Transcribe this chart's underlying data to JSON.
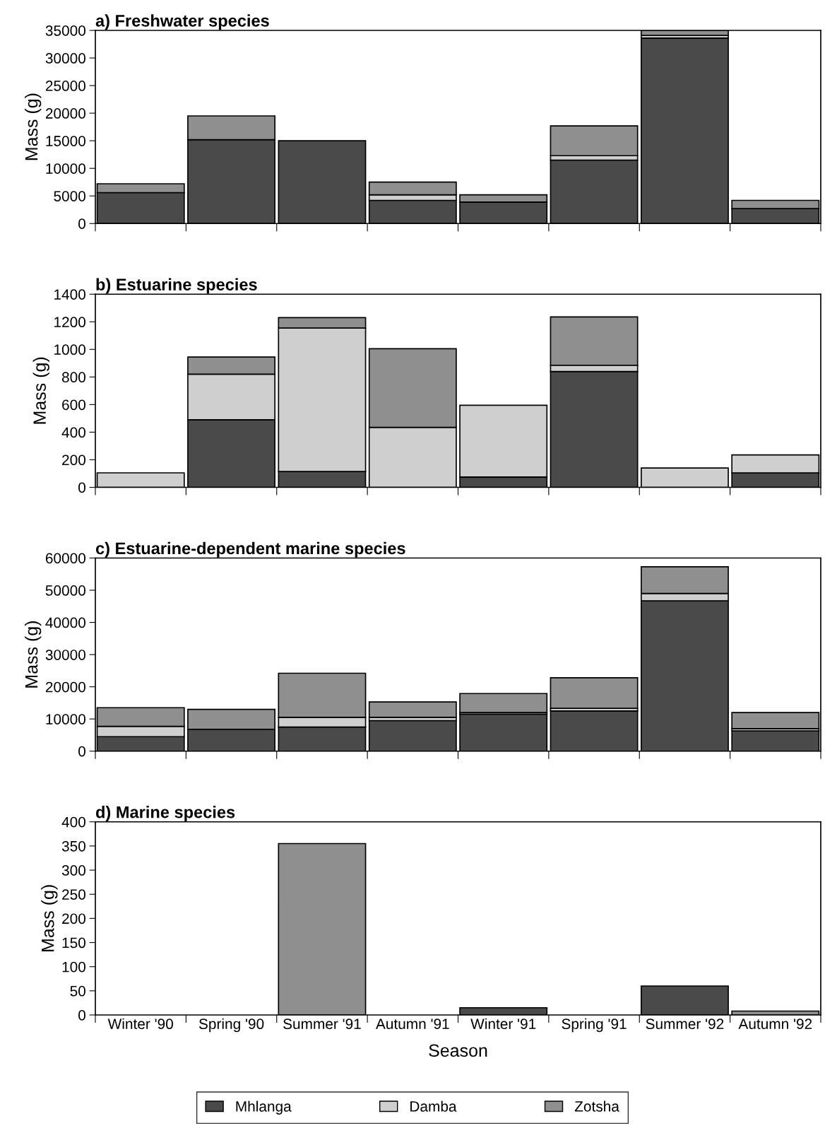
{
  "chart_data": [
    {
      "type": "bar",
      "stacked": true,
      "title": "a) Freshwater species",
      "ylabel": "Mass (g)",
      "categories": [
        null,
        null,
        null,
        null,
        null,
        null,
        null,
        null
      ],
      "ylim": [
        0,
        35000
      ],
      "yticks": [
        0,
        5000,
        10000,
        15000,
        20000,
        25000,
        30000,
        35000
      ],
      "tick_labels": "y",
      "series": [
        {
          "color": "#4a4a4a",
          "values": [
            5600,
            15200,
            15000,
            4200,
            3900,
            11500,
            33600,
            2700
          ]
        },
        {
          "color": "#cfcfcf",
          "values": [
            0,
            0,
            0,
            1000,
            0,
            800,
            500,
            0
          ]
        },
        {
          "color": "#8f8f8f",
          "values": [
            1600,
            4300,
            0,
            2300,
            1300,
            5400,
            900,
            1500
          ]
        }
      ]
    },
    {
      "type": "bar",
      "stacked": true,
      "title": "b) Estuarine species",
      "ylabel": "Mass (g)",
      "categories": [
        null,
        null,
        null,
        null,
        null,
        null,
        null,
        null
      ],
      "ylim": [
        0,
        1400
      ],
      "yticks": [
        0,
        200,
        400,
        600,
        800,
        1000,
        1200,
        1400
      ],
      "tick_labels": "y",
      "series": [
        {
          "color": "#4a4a4a",
          "values": [
            0,
            490,
            115,
            0,
            75,
            840,
            0,
            105
          ]
        },
        {
          "color": "#cfcfcf",
          "values": [
            105,
            330,
            1040,
            435,
            520,
            45,
            140,
            130
          ]
        },
        {
          "color": "#8f8f8f",
          "values": [
            0,
            125,
            75,
            570,
            0,
            350,
            0,
            0
          ]
        }
      ]
    },
    {
      "type": "bar",
      "stacked": true,
      "title": "c) Estuarine-dependent marine species",
      "ylabel": "Mass (g)",
      "categories": [
        null,
        null,
        null,
        null,
        null,
        null,
        null,
        null
      ],
      "ylim": [
        0,
        60000
      ],
      "yticks": [
        0,
        10000,
        20000,
        30000,
        40000,
        50000,
        60000
      ],
      "tick_labels": "y",
      "series": [
        {
          "color": "#4a4a4a",
          "values": [
            4500,
            6800,
            7500,
            9500,
            11500,
            12500,
            46700,
            6300
          ]
        },
        {
          "color": "#cfcfcf",
          "values": [
            3200,
            0,
            3000,
            1000,
            500,
            800,
            2300,
            700
          ]
        },
        {
          "color": "#8f8f8f",
          "values": [
            5800,
            6200,
            13700,
            4800,
            5900,
            9500,
            8300,
            5000
          ]
        }
      ]
    },
    {
      "type": "bar",
      "stacked": true,
      "title": "d) Marine species",
      "xlabel": "Season",
      "ylabel": "Mass (g)",
      "categories": [
        "Winter '90",
        "Spring '90",
        "Summer '91",
        "Autumn '91",
        "Winter '91",
        "Spring '91",
        "Summer '92",
        "Autumn '92"
      ],
      "ylim": [
        0,
        400
      ],
      "yticks": [
        0,
        50,
        100,
        150,
        200,
        250,
        300,
        350,
        400
      ],
      "legend": "bottom",
      "series": [
        {
          "name": "Mhlanga",
          "color": "#4a4a4a",
          "values": [
            0,
            0,
            0,
            0,
            15,
            0,
            60,
            0
          ]
        },
        {
          "name": "Damba",
          "color": "#cfcfcf",
          "values": [
            0,
            0,
            0,
            0,
            0,
            0,
            0,
            0
          ]
        },
        {
          "name": "Zotsha",
          "color": "#8f8f8f",
          "values": [
            0,
            0,
            355,
            0,
            0,
            0,
            0,
            8
          ]
        }
      ]
    }
  ]
}
